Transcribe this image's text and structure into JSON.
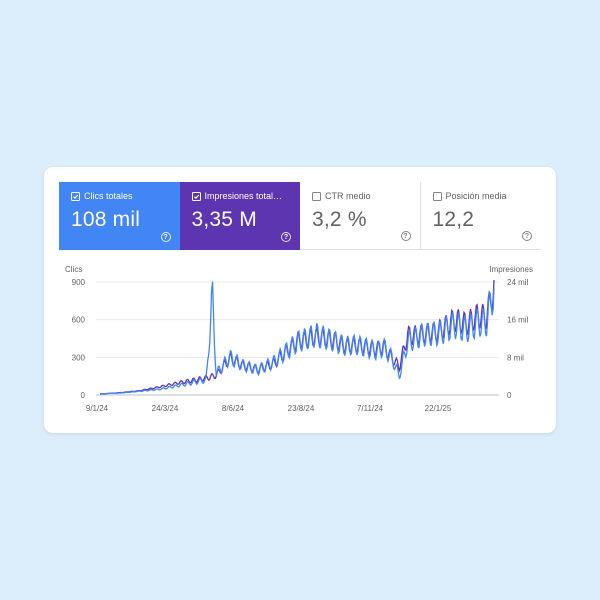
{
  "colors": {
    "background": "#dcedfb",
    "clicks": "#4285f4",
    "impressions": "#5e35b1",
    "inactive_text": "#5f6368"
  },
  "metrics": [
    {
      "label": "Clics totales",
      "value": "108 mil",
      "checked": true,
      "help_icon": "help-circle-icon"
    },
    {
      "label": "Impresiones total…",
      "value": "3,35 M",
      "checked": true,
      "help_icon": "help-circle-icon"
    },
    {
      "label": "CTR medio",
      "value": "3,2 %",
      "checked": false,
      "help_icon": "help-circle-icon"
    },
    {
      "label": "Posición media",
      "value": "12,2",
      "checked": false,
      "help_icon": "help-circle-icon"
    }
  ],
  "chart_data": {
    "type": "line",
    "y_left_label": "Clics",
    "y_right_label": "Impresiones",
    "y_left_ticks": [
      "900",
      "600",
      "300",
      "0"
    ],
    "y_right_ticks": [
      "24 mil",
      "16 mil",
      "8 mil",
      "0"
    ],
    "y_left_range": [
      0,
      900
    ],
    "y_right_range": [
      0,
      24000
    ],
    "x_ticks": [
      "9/1/24",
      "24/3/24",
      "8/6/24",
      "23/8/24",
      "7/11/24",
      "22/1/25"
    ],
    "grid": true,
    "legend": "none",
    "series": [
      {
        "name": "Clics totales",
        "axis": "left",
        "control_points": [
          [
            0,
            10
          ],
          [
            0.05,
            15
          ],
          [
            0.1,
            30
          ],
          [
            0.15,
            45
          ],
          [
            0.2,
            75
          ],
          [
            0.25,
            110
          ],
          [
            0.27,
            120
          ],
          [
            0.285,
            800
          ],
          [
            0.295,
            170
          ],
          [
            0.33,
            300
          ],
          [
            0.36,
            240
          ],
          [
            0.4,
            200
          ],
          [
            0.44,
            260
          ],
          [
            0.5,
            420
          ],
          [
            0.55,
            480
          ],
          [
            0.6,
            420
          ],
          [
            0.62,
            390
          ],
          [
            0.65,
            400
          ],
          [
            0.7,
            350
          ],
          [
            0.72,
            380
          ],
          [
            0.74,
            300
          ],
          [
            0.76,
            150
          ],
          [
            0.78,
            420
          ],
          [
            0.82,
            480
          ],
          [
            0.86,
            490
          ],
          [
            0.9,
            560
          ],
          [
            0.93,
            520
          ],
          [
            0.96,
            580
          ],
          [
            0.98,
            570
          ],
          [
            1.0,
            850
          ]
        ]
      },
      {
        "name": "Impresiones totales",
        "axis": "right",
        "control_points": [
          [
            0,
            200
          ],
          [
            0.05,
            500
          ],
          [
            0.1,
            900
          ],
          [
            0.15,
            1700
          ],
          [
            0.2,
            2600
          ],
          [
            0.25,
            3300
          ],
          [
            0.28,
            3800
          ],
          [
            0.295,
            4200
          ],
          [
            0.33,
            7800
          ],
          [
            0.36,
            6400
          ],
          [
            0.4,
            5400
          ],
          [
            0.44,
            6600
          ],
          [
            0.5,
            11400
          ],
          [
            0.55,
            12400
          ],
          [
            0.6,
            11500
          ],
          [
            0.62,
            10400
          ],
          [
            0.65,
            10600
          ],
          [
            0.7,
            9800
          ],
          [
            0.72,
            10300
          ],
          [
            0.74,
            8000
          ],
          [
            0.76,
            6000
          ],
          [
            0.78,
            12600
          ],
          [
            0.82,
            12900
          ],
          [
            0.86,
            13500
          ],
          [
            0.9,
            16000
          ],
          [
            0.93,
            15100
          ],
          [
            0.96,
            16900
          ],
          [
            0.98,
            16500
          ],
          [
            1.0,
            23000
          ]
        ]
      }
    ]
  }
}
